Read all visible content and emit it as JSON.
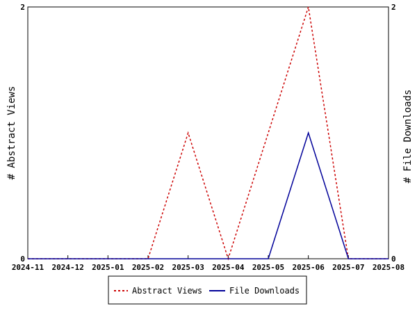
{
  "chart_data": {
    "type": "line",
    "x": [
      "2024-11",
      "2024-12",
      "2025-01",
      "2025-02",
      "2025-03",
      "2025-04",
      "2025-05",
      "2025-06",
      "2025-07",
      "2025-08"
    ],
    "ylabel_left": "# Abstract Views",
    "ylabel_right": "# File Downloads",
    "ylim_left": [
      0,
      2
    ],
    "ylim_right": [
      0,
      2
    ],
    "y_ticks_left": [
      "0",
      "2"
    ],
    "y_ticks_right": [
      "0",
      "2"
    ],
    "grid": false,
    "legend_position": "bottom",
    "series": [
      {
        "name": "Abstract Views",
        "axis": "left",
        "color": "#cc0000",
        "style": "dashed",
        "values": [
          0,
          0,
          0,
          0,
          1,
          0,
          1,
          2,
          0,
          0
        ]
      },
      {
        "name": "File Downloads",
        "axis": "right",
        "color": "#000099",
        "style": "solid",
        "values": [
          0,
          0,
          0,
          0,
          0,
          0,
          0,
          1,
          0,
          0
        ]
      }
    ]
  }
}
